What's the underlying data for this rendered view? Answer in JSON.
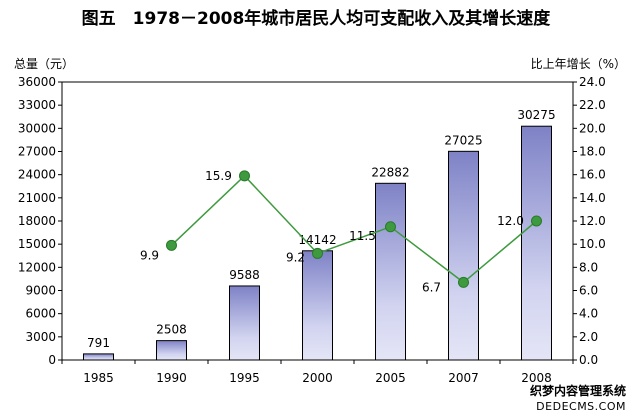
{
  "chart_data": {
    "type": "bar",
    "title": "图五　1978－2008年城市居民人均可支配收入及其增长速度",
    "ylabel": "总量（元）",
    "y2label": "比上年增长（%）",
    "categories": [
      "1985",
      "1990",
      "1995",
      "2000",
      "2005",
      "2007",
      "2008"
    ],
    "series": [
      {
        "name": "总量",
        "type": "bar",
        "axis": "left",
        "values": [
          791,
          2508,
          9588,
          14142,
          22882,
          27025,
          30275
        ]
      },
      {
        "name": "比上年增长",
        "type": "line",
        "axis": "right",
        "values": [
          null,
          9.9,
          15.9,
          9.2,
          11.5,
          6.7,
          12.0
        ],
        "labels": [
          "",
          "9.9",
          "15.9",
          "9.2",
          "11.5",
          "6.7",
          "12.0"
        ]
      }
    ],
    "ylim": [
      0,
      36000
    ],
    "yticks": [
      "0",
      "3000",
      "6000",
      "9000",
      "12000",
      "15000",
      "18000",
      "21000",
      "24000",
      "27000",
      "30000",
      "33000",
      "36000"
    ],
    "y2lim": [
      0,
      24
    ],
    "y2ticks": [
      "0.0",
      "2.0",
      "4.0",
      "6.0",
      "8.0",
      "10.0",
      "12.0",
      "14.0",
      "16.0",
      "18.0",
      "20.0",
      "22.0",
      "24.0"
    ],
    "grid": false,
    "legend": "none",
    "colors": {
      "bar_top": "#7e82c6",
      "bar_bottom": "#e4e5f6",
      "bar_border": "#000000",
      "line": "#3e9a3e",
      "marker": "#3e9a3e"
    }
  },
  "watermark": {
    "line1": "织梦内容管理系统",
    "line2": "DEDECMS.COM"
  }
}
